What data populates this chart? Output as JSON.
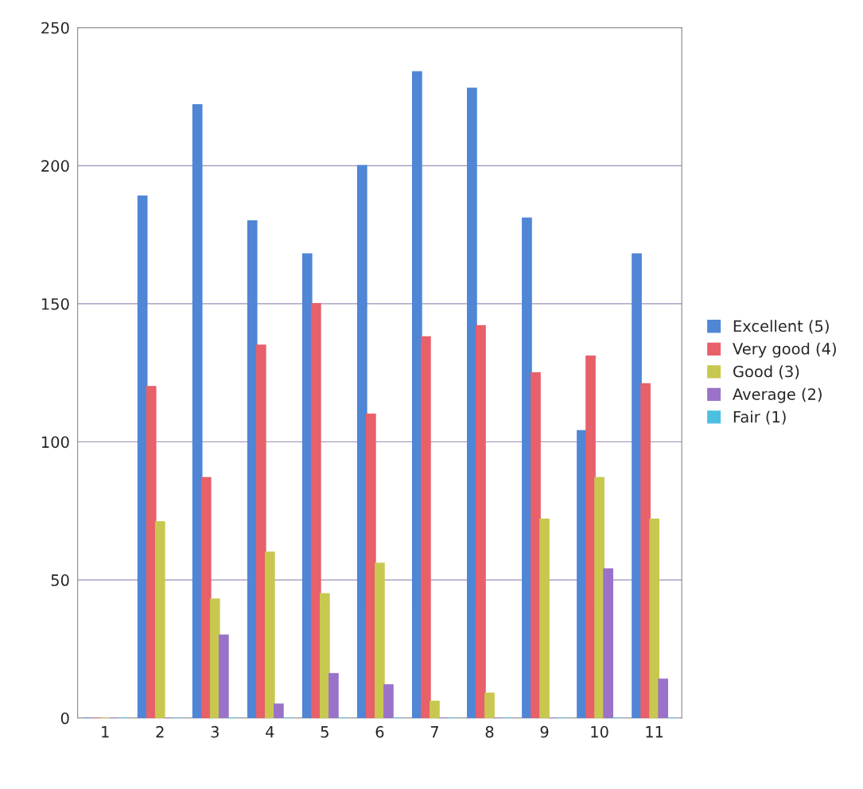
{
  "chart_data": {
    "type": "bar",
    "categories": [
      "1",
      "2",
      "3",
      "4",
      "5",
      "6",
      "7",
      "8",
      "9",
      "10",
      "11"
    ],
    "series": [
      {
        "name": "Excellent (5)",
        "color": "#4f86d6",
        "values": [
          0,
          189,
          222,
          180,
          168,
          200,
          234,
          228,
          181,
          104,
          168
        ]
      },
      {
        "name": "Very good (4)",
        "color": "#e8606a",
        "values": [
          0,
          120,
          87,
          135,
          150,
          110,
          138,
          142,
          125,
          131,
          121
        ]
      },
      {
        "name": "Good (3)",
        "color": "#c8c850",
        "values": [
          0,
          71,
          43,
          60,
          45,
          56,
          6,
          9,
          72,
          87,
          72
        ]
      },
      {
        "name": "Average (2)",
        "color": "#9a72c9",
        "values": [
          0,
          0,
          30,
          5,
          16,
          12,
          0,
          0,
          0,
          54,
          14
        ]
      },
      {
        "name": "Fair (1)",
        "color": "#4bbfe0",
        "values": [
          0,
          0,
          0,
          0,
          0,
          0,
          0,
          0,
          0,
          0,
          0
        ]
      }
    ],
    "ylim": [
      0,
      250
    ],
    "yticks": [
      0,
      50,
      100,
      150,
      200,
      250
    ],
    "grid": "y",
    "legend": "right"
  }
}
